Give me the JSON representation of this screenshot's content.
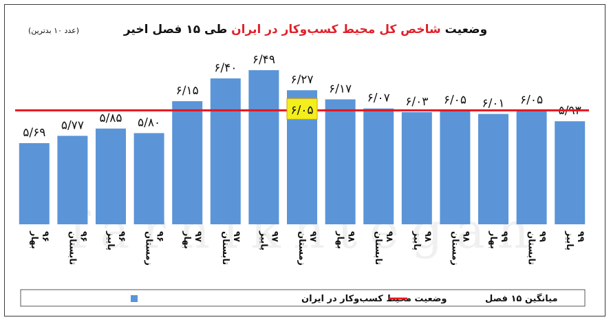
{
  "chart_data": {
    "type": "bar",
    "title_parts": [
      {
        "text": "وضعیت ",
        "color": "#111111"
      },
      {
        "text": "شاخص کل محیط کسب‌وکار در ایران",
        "color": "#e0202a"
      },
      {
        "text": " طی ۱۵ فصل اخیر",
        "color": "#111111"
      }
    ],
    "subtitle": "(عدد ۱۰ بدترین)",
    "categories": [
      [
        "بهار",
        "۹۶"
      ],
      [
        "تابستان",
        "۹۶"
      ],
      [
        "پاییز",
        "۹۶"
      ],
      [
        "زمستان",
        "۹۶"
      ],
      [
        "بهار",
        "۹۷"
      ],
      [
        "تابستان",
        "۹۷"
      ],
      [
        "پاییز",
        "۹۷"
      ],
      [
        "زمستان",
        "۹۷"
      ],
      [
        "بهار",
        "۹۸"
      ],
      [
        "تابستان",
        "۹۸"
      ],
      [
        "پاییز",
        "۹۸"
      ],
      [
        "زمستان",
        "۹۸"
      ],
      [
        "بهار",
        "۹۹"
      ],
      [
        "تابستان",
        "۹۹"
      ],
      [
        "پاییز",
        "۹۹"
      ]
    ],
    "values": [
      5.69,
      5.77,
      5.85,
      5.8,
      6.15,
      6.4,
      6.49,
      6.27,
      6.17,
      6.07,
      6.03,
      6.05,
      6.01,
      6.05,
      5.93
    ],
    "value_labels": [
      "۵/۶۹",
      "۵/۷۷",
      "۵/۸۵",
      "۵/۸۰",
      "۶/۱۵",
      "۶/۴۰",
      "۶/۴۹",
      "۶/۲۷",
      "۶/۱۷",
      "۶/۰۷",
      "۶/۰۳",
      "۶/۰۵",
      "۶/۰۱",
      "۶/۰۵",
      "۵/۹۳"
    ],
    "average": 6.05,
    "average_label": "۶/۰۵",
    "bar_color": "#5b95d8",
    "line_color": "#e8141c",
    "avg_box_color": "#f3ee1c",
    "legend": [
      {
        "name": "وضعیت محیط کسب‌وکار در ایران",
        "kind": "bar"
      },
      {
        "name": "میانگین ۱۵ فصل",
        "kind": "line"
      }
    ],
    "watermark": "farhikhtegan",
    "ylim": [
      4.8,
      6.6
    ],
    "grid": false
  }
}
